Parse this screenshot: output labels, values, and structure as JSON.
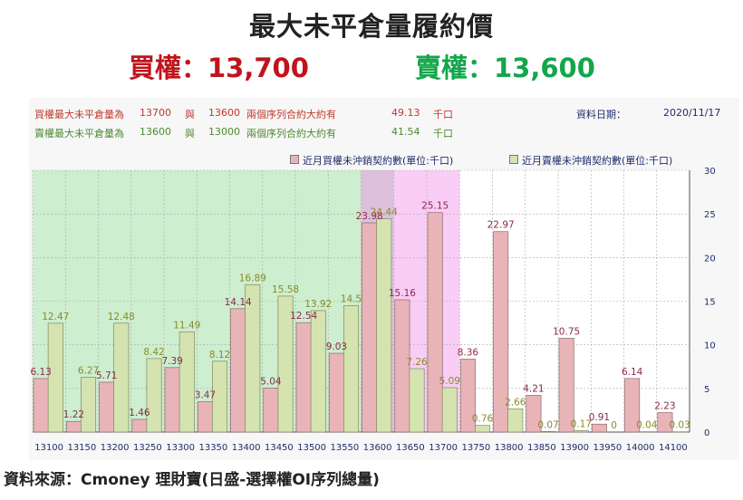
{
  "header": {
    "title": "最大未平倉量履約價",
    "call_max": "買權：13,700",
    "put_max": "賣權：13,600"
  },
  "info": {
    "call_line": {
      "label": "買權最大未平倉量為",
      "strike1": "13700",
      "conj": "與",
      "strike2": "13600",
      "desc": "兩個序列合約大約有",
      "value": "49.13",
      "unit": "千口"
    },
    "put_line": {
      "label": "賣權最大未平倉量為",
      "strike1": "13600",
      "conj": "與",
      "strike2": "13000",
      "desc": "兩個序列合約大約有",
      "value": "41.54",
      "unit": "千口"
    },
    "date_label": "資料日期：",
    "date_value": "2020/11/17"
  },
  "legend": {
    "call": "近月買權未沖銷契約數(單位:千口)",
    "put": "近月賣權未沖銷契約數(單位:千口)"
  },
  "colors": {
    "call_bar": "#e8b4b8",
    "put_bar": "#d4e3b0",
    "call_label": "#8b2a4a",
    "put_label": "#8a8a2a",
    "green_zone": "#cdeecf",
    "purple_zone": "#dcc0dc",
    "pink_zone": "#f9cdf5"
  },
  "chart_data": {
    "type": "bar",
    "categories": [
      "13100",
      "13150",
      "13200",
      "13250",
      "13300",
      "13350",
      "13400",
      "13450",
      "13500",
      "13550",
      "13600",
      "13650",
      "13700",
      "13750",
      "13800",
      "13850",
      "13900",
      "13950",
      "14000",
      "14100"
    ],
    "series": [
      {
        "name": "近月買權未沖銷契約數(單位:千口)",
        "values": [
          6.13,
          1.22,
          5.71,
          1.46,
          7.39,
          3.47,
          14.14,
          5.04,
          12.54,
          9.03,
          23.98,
          15.16,
          25.15,
          8.36,
          22.97,
          4.21,
          10.75,
          0.91,
          6.14,
          2.23
        ]
      },
      {
        "name": "近月賣權未沖銷契約數(單位:千口)",
        "values": [
          12.47,
          6.27,
          12.48,
          8.42,
          11.49,
          8.12,
          16.89,
          15.58,
          13.92,
          14.5,
          24.44,
          7.26,
          5.09,
          0.76,
          2.66,
          0.07,
          0.17,
          0,
          0.04,
          0.03
        ]
      }
    ],
    "call_labels": [
      "6.13",
      "1.22",
      "5.71",
      "1.46",
      "7.39",
      "3.47",
      "14.14",
      "5.04",
      "12.54",
      "9.03",
      "23.98",
      "15.16",
      "25.15",
      "8.36",
      "22.97",
      "4.21",
      "10.75",
      "0.91",
      "6.14",
      "2.23"
    ],
    "put_labels": [
      "12.47",
      "6.27",
      "12.48",
      "8.42",
      "11.49",
      "8.12",
      "16.89",
      "15.58",
      "13.92",
      "14.5",
      "24.44",
      "7.26",
      "5.09",
      "0.76",
      "2.66",
      "0.07",
      "0.17",
      "0",
      "0.04",
      "0.03"
    ],
    "y_ticks": [
      "0",
      "5",
      "10",
      "15",
      "20",
      "25",
      "30"
    ],
    "ylim": [
      0,
      30
    ],
    "grid": true,
    "legend_position": "top-right",
    "zones": [
      {
        "name": "green",
        "from_index": 0,
        "to_index": 9
      },
      {
        "name": "purple",
        "from_index": 10,
        "to_index": 10
      },
      {
        "name": "pink",
        "from_index": 11,
        "to_index": 12
      }
    ]
  },
  "footer": {
    "source": "資料來源：Cmoney 理財寶(日盛-選擇權OI序列總量)"
  }
}
